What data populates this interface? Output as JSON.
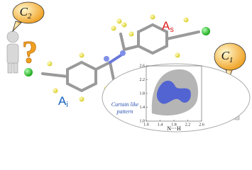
{
  "bubbles": [
    {
      "letter": "C",
      "subscript": "2"
    },
    {
      "letter": "C",
      "subscript": "1"
    }
  ],
  "labels": [
    {
      "letter": "A",
      "subscript": "s"
    },
    {
      "letter": "A",
      "subscript": "i"
    }
  ],
  "inset": {
    "annotation": [
      "Curtain like",
      "pattern"
    ],
    "xlabel": "N···H",
    "xlim": [
      1,
      2.6
    ],
    "ylim": [
      1,
      2.6
    ],
    "xticks": [
      {
        "value": 1,
        "label": "1.0"
      },
      1.4,
      1.8,
      2.2,
      2.6
    ],
    "yticks": [
      {
        "value": 1,
        "label": "1.0"
      },
      1.4,
      1.8,
      2.2,
      2.6
    ]
  }
}
